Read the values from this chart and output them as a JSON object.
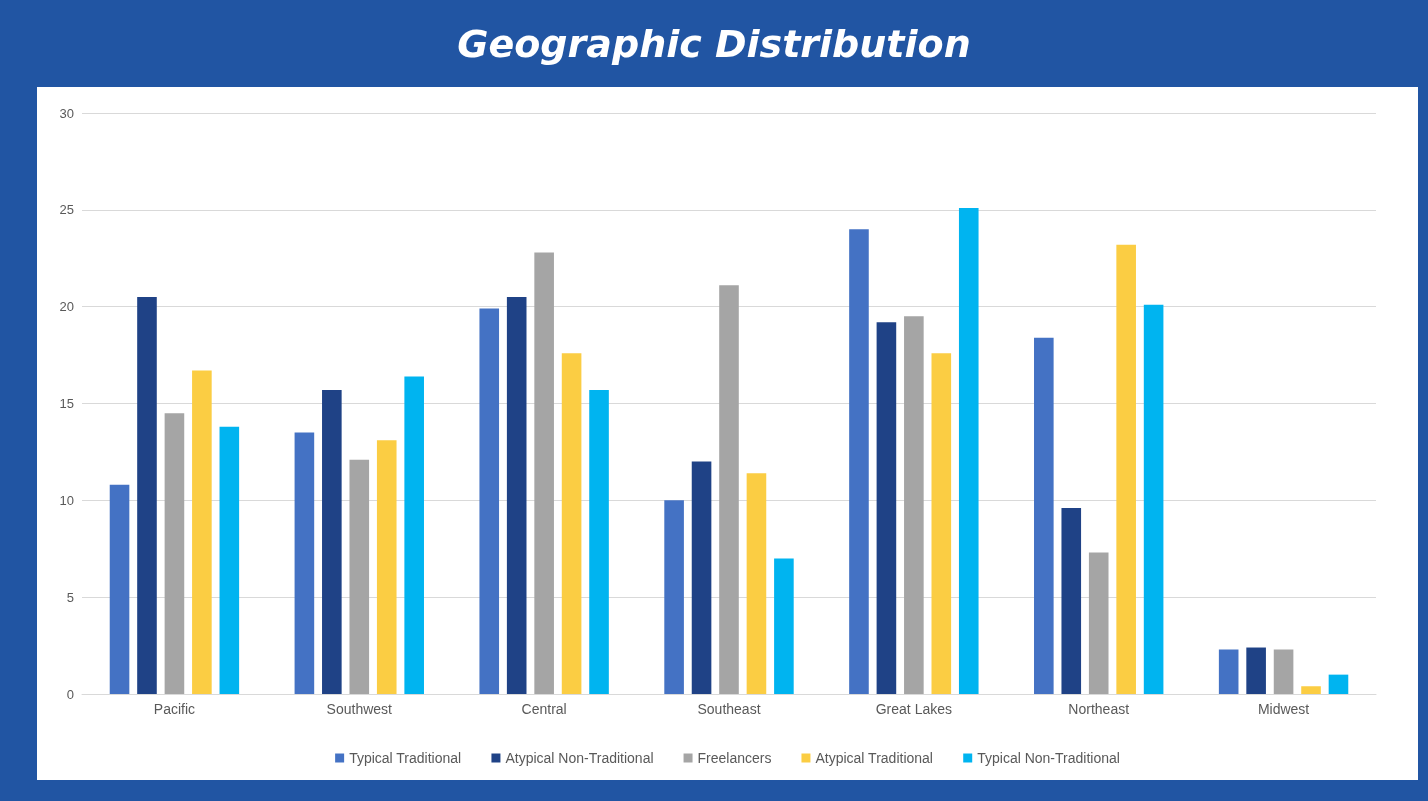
{
  "chart_data": {
    "type": "bar",
    "title": "Geographic Distribution",
    "categories": [
      "Pacific",
      "Southwest",
      "Central",
      "Southeast",
      "Great Lakes",
      "Northeast",
      "Midwest"
    ],
    "series": [
      {
        "name": "Typical Traditional",
        "color": "#4472c4",
        "values": [
          10.8,
          13.5,
          19.9,
          10.0,
          24.0,
          18.4,
          2.3
        ]
      },
      {
        "name": "Atypical Non-Traditional",
        "color": "#1f4286",
        "values": [
          20.5,
          15.7,
          20.5,
          12.0,
          19.2,
          9.6,
          2.4
        ]
      },
      {
        "name": "Freelancers",
        "color": "#a5a5a5",
        "values": [
          14.5,
          12.1,
          22.8,
          21.1,
          19.5,
          7.3,
          2.3
        ]
      },
      {
        "name": "Atypical Traditional",
        "color": "#fbcd43",
        "values": [
          16.7,
          13.1,
          17.6,
          11.4,
          17.6,
          23.2,
          0.4
        ]
      },
      {
        "name": "Typical Non-Traditional",
        "color": "#00b4f0",
        "values": [
          13.8,
          16.4,
          15.7,
          7.0,
          25.1,
          20.1,
          1.0
        ]
      }
    ],
    "ylim": [
      0,
      30
    ],
    "yticks": [
      0,
      5,
      10,
      15,
      20,
      25,
      30
    ],
    "grid": "y",
    "legend": "bottom"
  }
}
